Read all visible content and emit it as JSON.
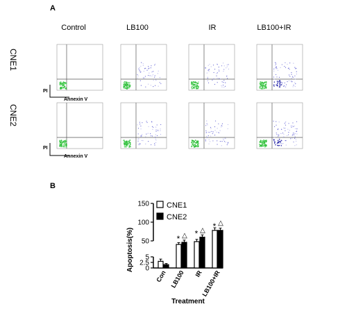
{
  "panel_a": {
    "letter": "A",
    "columns": [
      "Control",
      "LB100",
      "IR",
      "LB100+IR"
    ],
    "rows": [
      "CNE1",
      "CNE2"
    ],
    "axis_y": "PI",
    "axis_x": "Annexin V"
  },
  "panel_b": {
    "letter": "B"
  },
  "chart_data": {
    "type": "bar",
    "categories": [
      "Con",
      "LB100",
      "IR",
      "LB100+IR"
    ],
    "series": [
      {
        "name": "CNE1",
        "values": [
          3,
          40,
          48,
          78
        ],
        "errors": [
          1,
          5,
          6,
          7
        ],
        "color": "#ffffff"
      },
      {
        "name": "CNE2",
        "values": [
          1.5,
          46,
          60,
          78
        ],
        "errors": [
          0.5,
          6,
          6,
          6
        ],
        "color": "#000000"
      }
    ],
    "ylabel": "Apoptosis(%)",
    "xlabel": "Treatment",
    "yticks": [
      0,
      2.5,
      5,
      50,
      100,
      150
    ],
    "broken_axis": true,
    "annotations": [
      "*",
      "△"
    ],
    "legend": "top-left"
  }
}
